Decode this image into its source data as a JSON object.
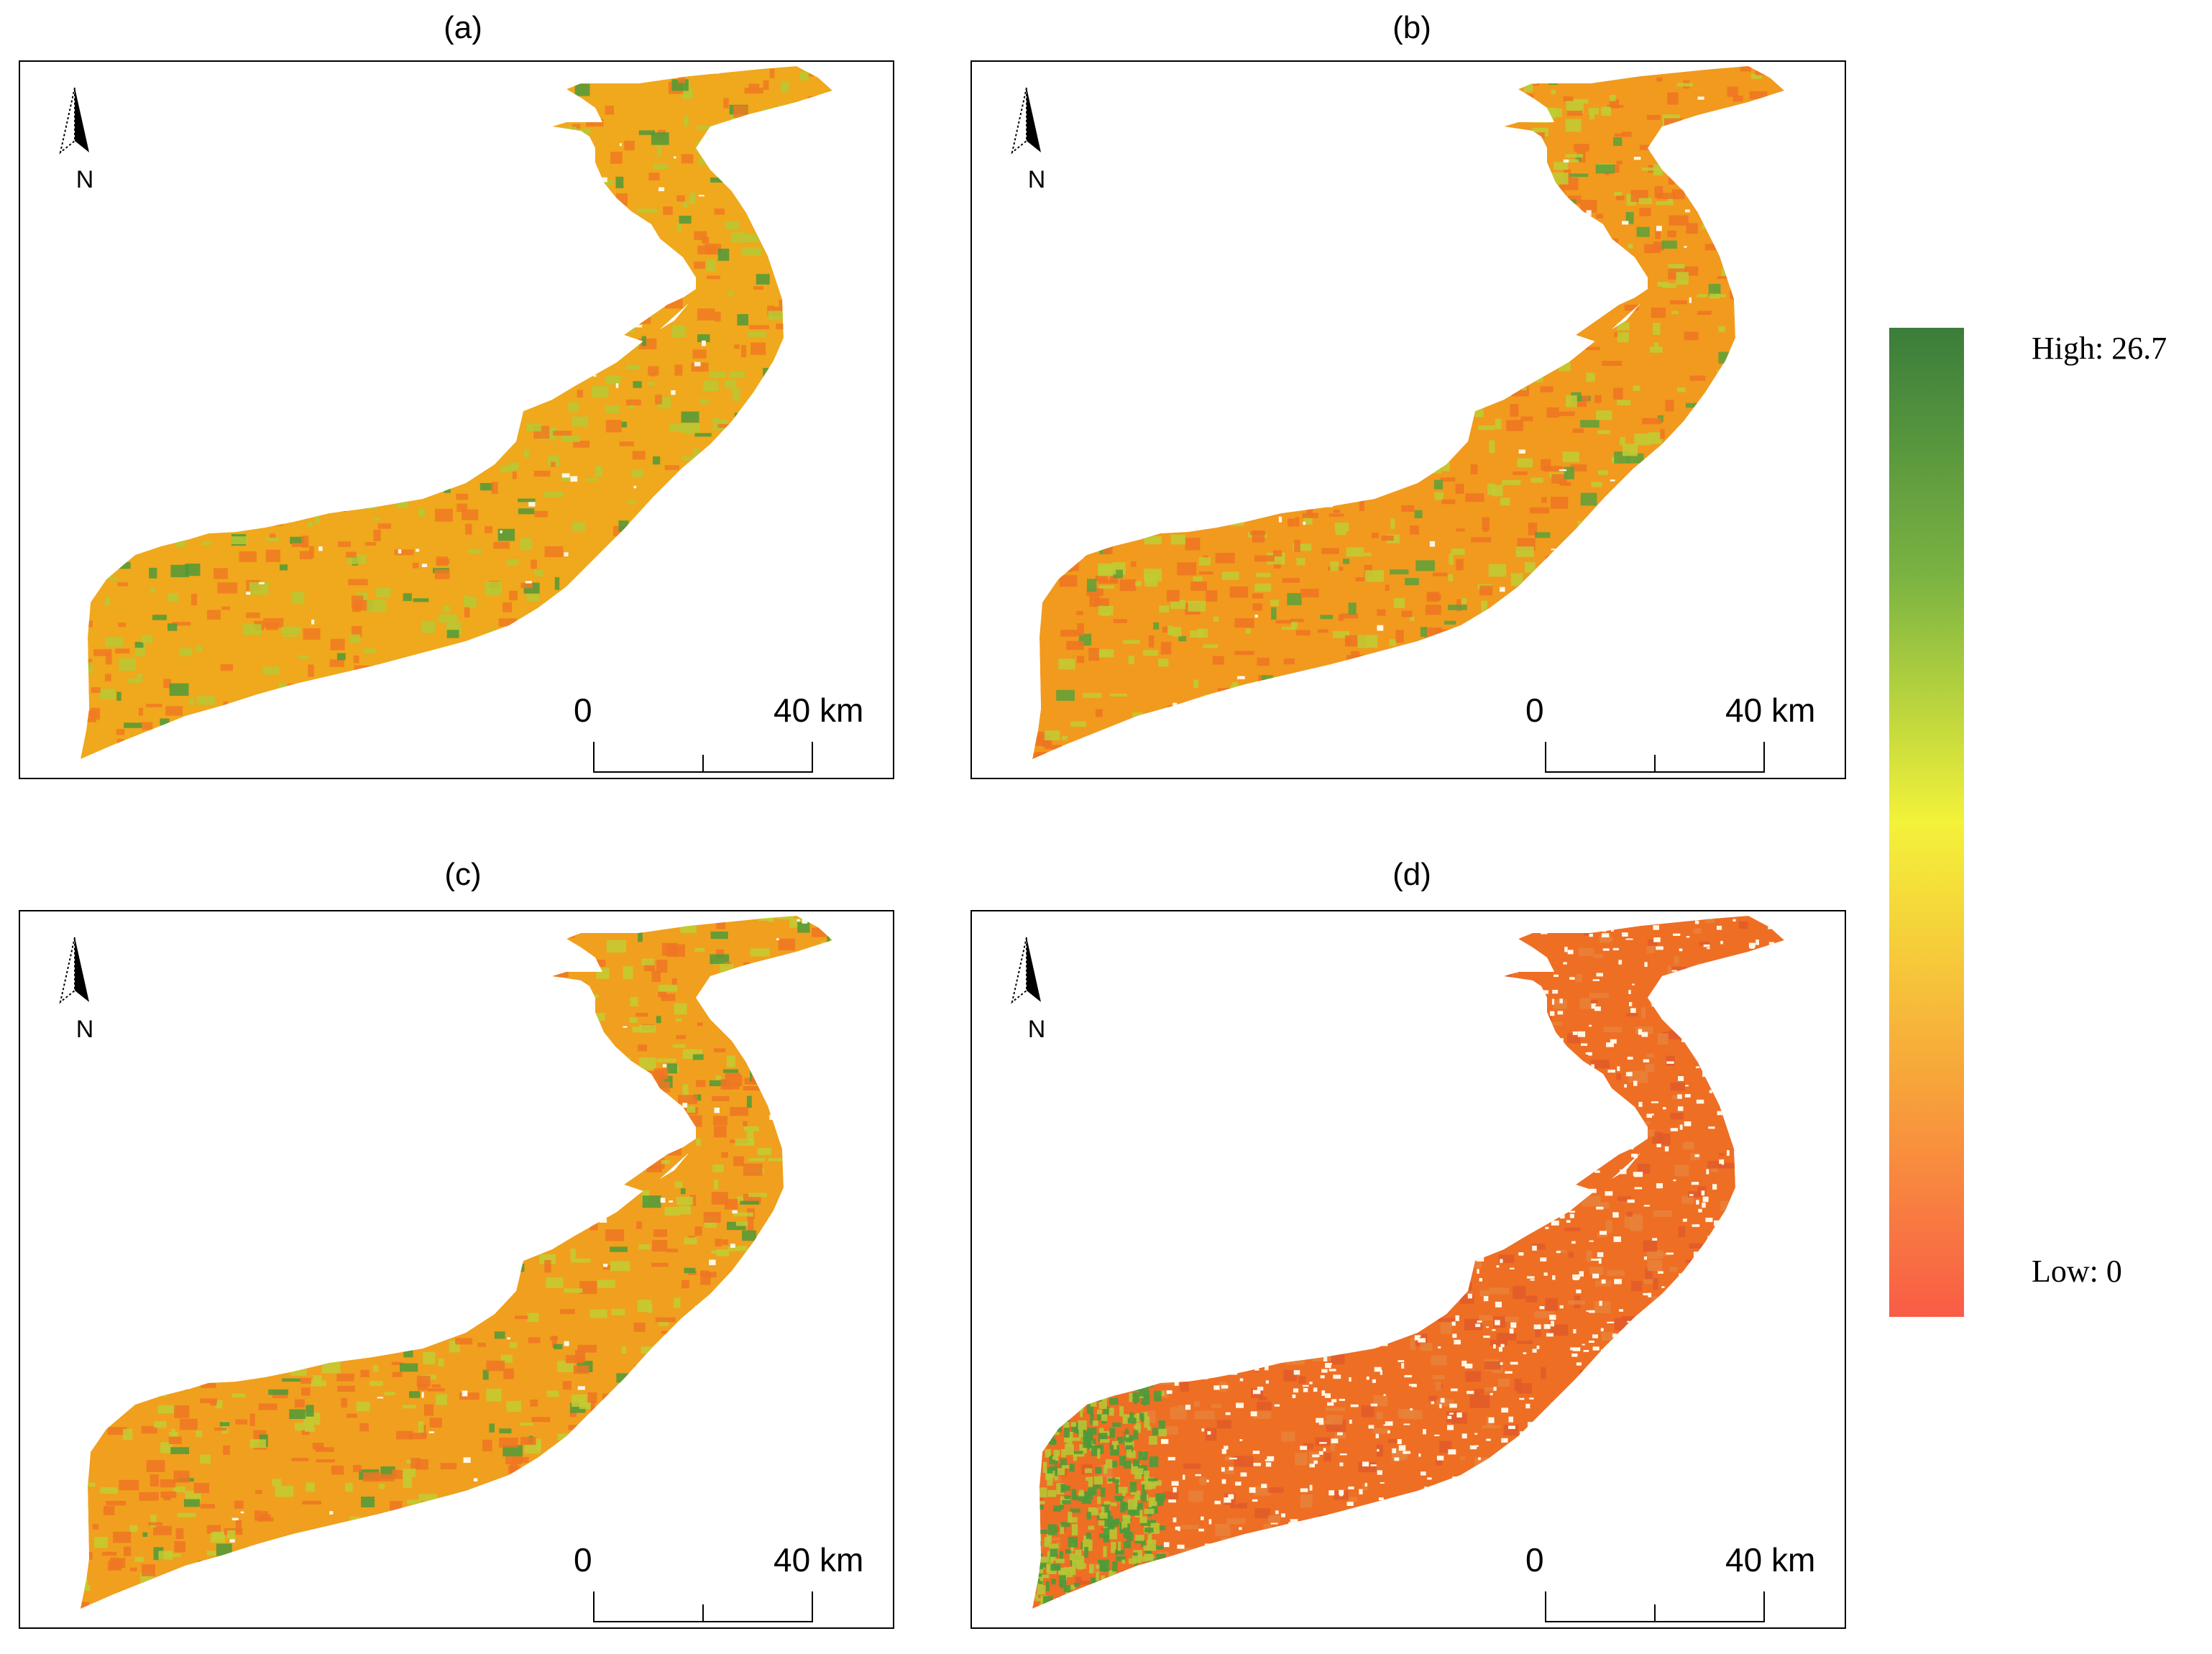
{
  "panels": [
    {
      "id": "a",
      "title": "(a)",
      "base": "#f0a81c",
      "patches": [
        [
          "#4f9a38",
          0.07
        ],
        [
          "#b9c832",
          0.18
        ],
        [
          "#f07a22",
          0.2
        ]
      ],
      "white_frac": 0.01
    },
    {
      "id": "b",
      "title": "(b)",
      "base": "#f19a1e",
      "patches": [
        [
          "#5aa13a",
          0.06
        ],
        [
          "#bfcc34",
          0.24
        ],
        [
          "#ef7422",
          0.25
        ]
      ],
      "white_frac": 0.01
    },
    {
      "id": "c",
      "title": "(c)",
      "base": "#f0a01e",
      "patches": [
        [
          "#4f9a38",
          0.06
        ],
        [
          "#c2cc33",
          0.22
        ],
        [
          "#ee7623",
          0.24
        ]
      ],
      "white_frac": 0.01
    },
    {
      "id": "d",
      "title": "(d)",
      "base": "#ee6e24",
      "patches": [
        [
          "#e8823a",
          0.2
        ],
        [
          "#e05a2a",
          0.15
        ]
      ],
      "white_frac": 0.18,
      "green_west": true
    }
  ],
  "north_label": "N",
  "scale": {
    "start_label": "0",
    "end_label": "40 km"
  },
  "legend": {
    "high_label": "High: 26.7",
    "low_label": "Low: 0",
    "colors": [
      "#3a7d3a",
      "#7ab342",
      "#f4f23a",
      "#f7a83a",
      "#f95c46"
    ]
  }
}
